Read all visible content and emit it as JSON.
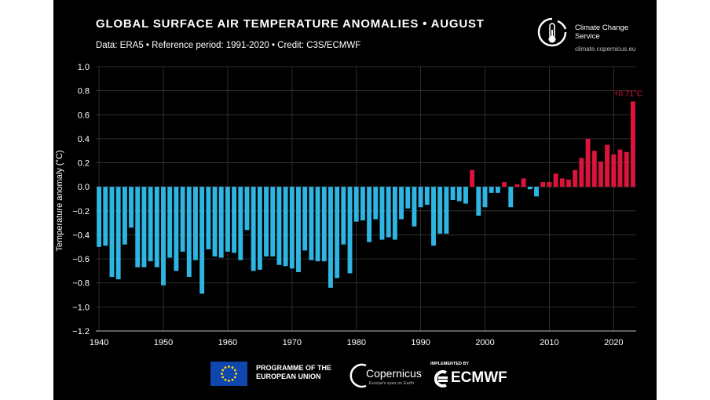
{
  "header": {
    "title": "GLOBAL SURFACE AIR TEMPERATURE ANOMALIES • AUGUST",
    "subtitle": "Data: ERA5 • Reference period: 1991-2020 • Credit: C3S/ECMWF"
  },
  "brand": {
    "name": "Climate Change Service",
    "url": "climate.copernicus.eu"
  },
  "footer": {
    "eu_label": "PROGRAMME OF THE EUROPEAN UNION",
    "copernicus_name": "Copernicus",
    "copernicus_tag": "Europe's eyes on Earth",
    "ecmwf_tag": "IMPLEMENTED BY",
    "ecmwf_name": "ECMWF"
  },
  "colors": {
    "negative": "#2fb5e2",
    "positive": "#dc143c",
    "background": "#000000",
    "grid": "#3a3a3a",
    "text": "#ffffff"
  },
  "chart_data": {
    "type": "bar",
    "title": "GLOBAL SURFACE AIR TEMPERATURE ANOMALIES • AUGUST",
    "xlabel": "",
    "ylabel": "Temperature anomaly (°C)",
    "ylim": [
      -1.2,
      1.0
    ],
    "xlim": [
      1940,
      2023
    ],
    "yticks": [
      "1.0",
      "0.8",
      "0.6",
      "0.4",
      "0.2",
      "0.0",
      "−0.2",
      "−0.4",
      "−0.6",
      "−0.8",
      "−1.0",
      "−1.2"
    ],
    "xticks": [
      "1940",
      "1950",
      "1960",
      "1970",
      "1980",
      "1990",
      "2000",
      "2010",
      "2020"
    ],
    "grid": true,
    "annotation": {
      "year": 2023,
      "text": "+0.71°C"
    },
    "series": [
      {
        "x": [
          1940,
          1941,
          1942,
          1943,
          1944,
          1945,
          1946,
          1947,
          1948,
          1949,
          1950,
          1951,
          1952,
          1953,
          1954,
          1955,
          1956,
          1957,
          1958,
          1959,
          1960,
          1961,
          1962,
          1963,
          1964,
          1965,
          1966,
          1967,
          1968,
          1969,
          1970,
          1971,
          1972,
          1973,
          1974,
          1975,
          1976,
          1977,
          1978,
          1979,
          1980,
          1981,
          1982,
          1983,
          1984,
          1985,
          1986,
          1987,
          1988,
          1989,
          1990,
          1991,
          1992,
          1993,
          1994,
          1995,
          1996,
          1997,
          1998,
          1999,
          2000,
          2001,
          2002,
          2003,
          2004,
          2005,
          2006,
          2007,
          2008,
          2009,
          2010,
          2011,
          2012,
          2013,
          2014,
          2015,
          2016,
          2017,
          2018,
          2019,
          2020,
          2021,
          2022,
          2023
        ],
        "values": [
          -0.5,
          -0.49,
          -0.75,
          -0.77,
          -0.48,
          -0.34,
          -0.67,
          -0.67,
          -0.62,
          -0.67,
          -0.82,
          -0.59,
          -0.7,
          -0.54,
          -0.75,
          -0.61,
          -0.89,
          -0.52,
          -0.58,
          -0.59,
          -0.54,
          -0.55,
          -0.61,
          -0.36,
          -0.7,
          -0.69,
          -0.58,
          -0.58,
          -0.65,
          -0.66,
          -0.68,
          -0.71,
          -0.53,
          -0.61,
          -0.62,
          -0.62,
          -0.84,
          -0.76,
          -0.48,
          -0.72,
          -0.29,
          -0.28,
          -0.46,
          -0.27,
          -0.44,
          -0.42,
          -0.44,
          -0.27,
          -0.18,
          -0.33,
          -0.17,
          -0.15,
          -0.49,
          -0.39,
          -0.39,
          -0.11,
          -0.12,
          -0.14,
          0.14,
          -0.24,
          -0.17,
          -0.05,
          -0.05,
          0.04,
          -0.17,
          0.02,
          0.07,
          -0.02,
          -0.08,
          0.04,
          0.04,
          0.11,
          0.07,
          0.06,
          0.14,
          0.24,
          0.4,
          0.3,
          0.21,
          0.35,
          0.27,
          0.31,
          0.29,
          0.71
        ]
      }
    ]
  }
}
